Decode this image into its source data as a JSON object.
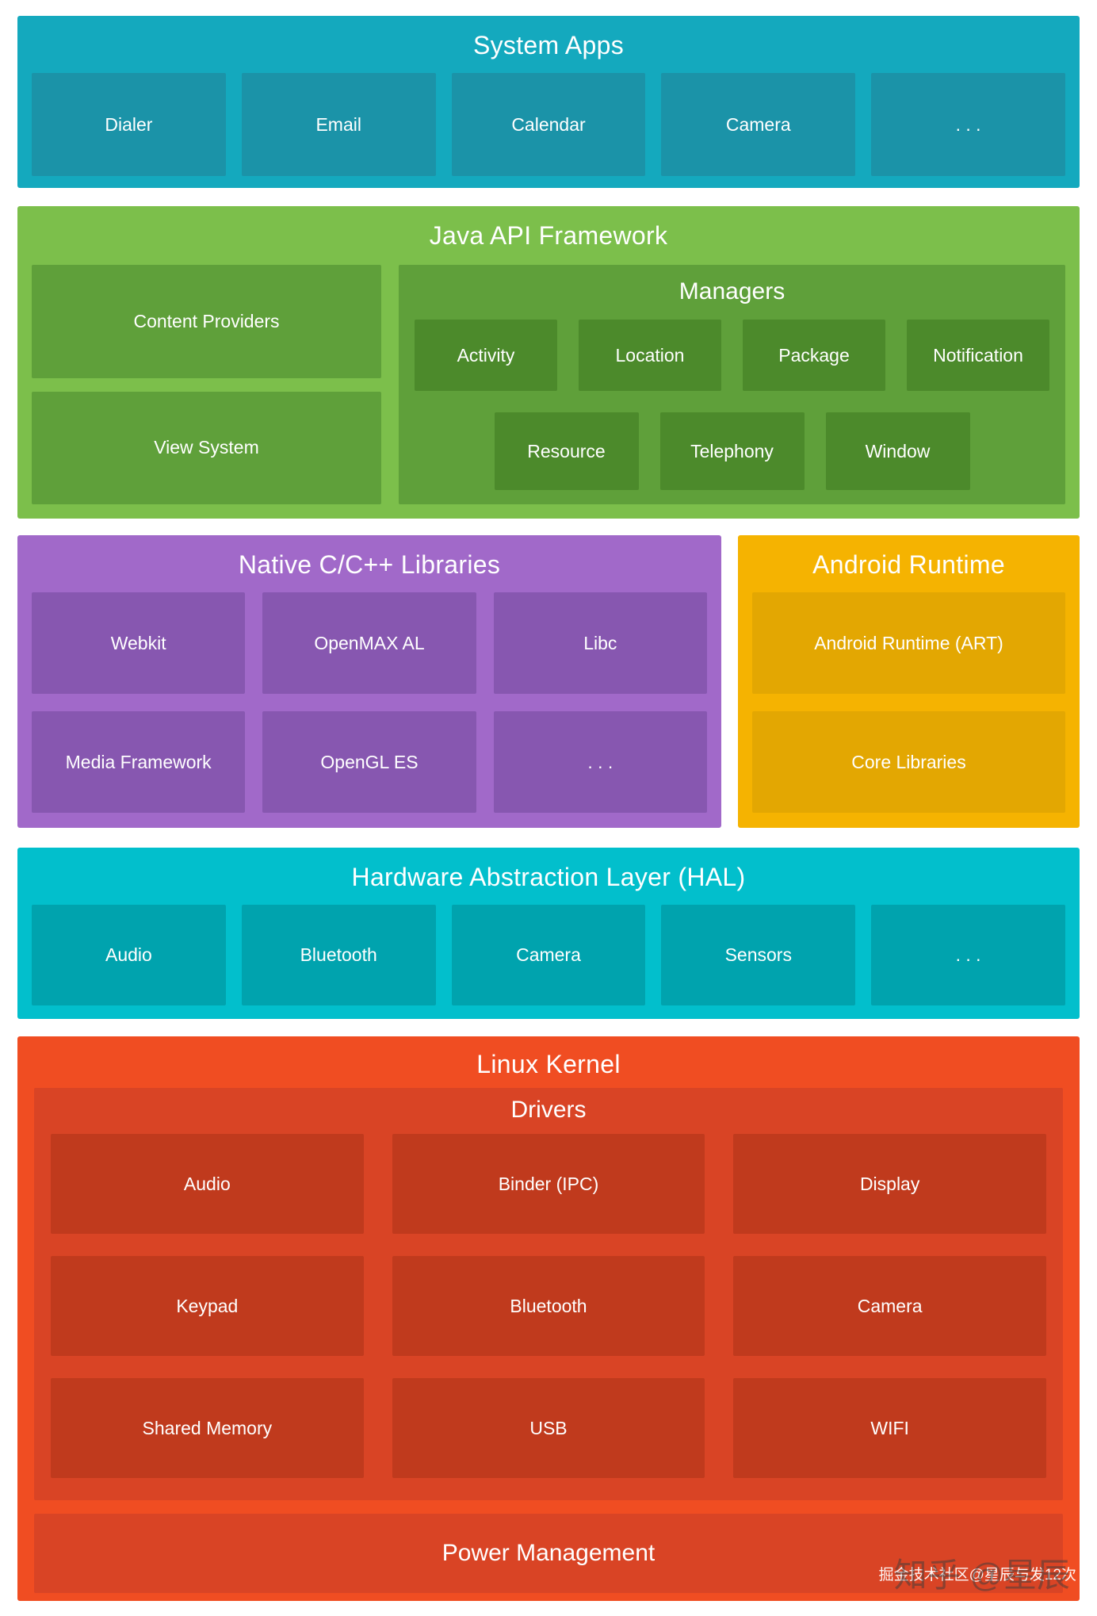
{
  "colors": {
    "system_apps_bg": "#14A9BE",
    "system_apps_item": "#1B93A8",
    "java_bg": "#7CBF4B",
    "java_item": "#5FA03A",
    "java_sub_item": "#4C8A2B",
    "native_bg": "#A169C9",
    "native_item": "#8757B0",
    "runtime_bg": "#F5B301",
    "runtime_item": "#E3A702",
    "hal_bg": "#02BFCC",
    "hal_item": "#00A3AE",
    "kernel_bg": "#F04D22",
    "kernel_item": "#D94425",
    "kernel_sub_item": "#C03A1D",
    "text": "#FFFFFF"
  },
  "sections": {
    "system_apps": {
      "title": "System Apps",
      "items": [
        "Dialer",
        "Email",
        "Calendar",
        "Camera",
        ". . ."
      ]
    },
    "java_api": {
      "title": "Java API Framework",
      "left_items": [
        "Content Providers",
        "View System"
      ],
      "managers": {
        "title": "Managers",
        "row1": [
          "Activity",
          "Location",
          "Package",
          "Notification"
        ],
        "row2": [
          "Resource",
          "Telephony",
          "Window"
        ]
      }
    },
    "native_libs": {
      "title": "Native C/C++ Libraries",
      "row1": [
        "Webkit",
        "OpenMAX AL",
        "Libc"
      ],
      "row2": [
        "Media Framework",
        "OpenGL ES",
        ". . ."
      ]
    },
    "android_runtime": {
      "title": "Android Runtime",
      "items": [
        "Android Runtime (ART)",
        "Core Libraries"
      ]
    },
    "hal": {
      "title": "Hardware Abstraction Layer (HAL)",
      "items": [
        "Audio",
        "Bluetooth",
        "Camera",
        "Sensors",
        ". . ."
      ]
    },
    "linux_kernel": {
      "title": "Linux Kernel",
      "drivers": {
        "title": "Drivers",
        "items": [
          "Audio",
          "Binder (IPC)",
          "Display",
          "Keypad",
          "Bluetooth",
          "Camera",
          "Shared Memory",
          "USB",
          "WIFI"
        ]
      },
      "power_label": "Power Management"
    }
  },
  "watermark": {
    "small": "掘金技术社区@星辰与发12次",
    "big": "知乎 @星辰"
  }
}
